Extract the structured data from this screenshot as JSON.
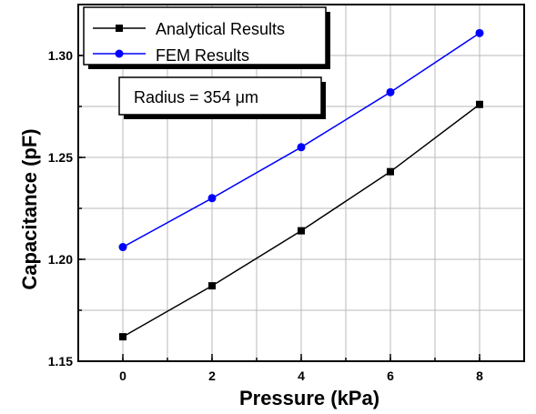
{
  "chart_data": {
    "type": "line",
    "xlabel": "Pressure (kPa)",
    "ylabel": "Capacitance (pF)",
    "x": [
      0,
      2,
      4,
      6,
      8
    ],
    "xlim": [
      -1,
      9
    ],
    "ylim": [
      1.15,
      1.325
    ],
    "xticks": [
      "0",
      "2",
      "4",
      "6",
      "8"
    ],
    "yticks": [
      "1.15",
      "1.20",
      "1.25",
      "1.30"
    ],
    "grid": true,
    "legend_position": "top-left",
    "annotation": "Radius = 354 μm",
    "series": [
      {
        "name": "Analytical Results",
        "color": "#000000",
        "marker": "square",
        "values": [
          1.162,
          1.187,
          1.214,
          1.243,
          1.276
        ]
      },
      {
        "name": "FEM Results",
        "color": "#0000ff",
        "marker": "circle",
        "values": [
          1.206,
          1.23,
          1.255,
          1.282,
          1.311
        ]
      }
    ]
  }
}
